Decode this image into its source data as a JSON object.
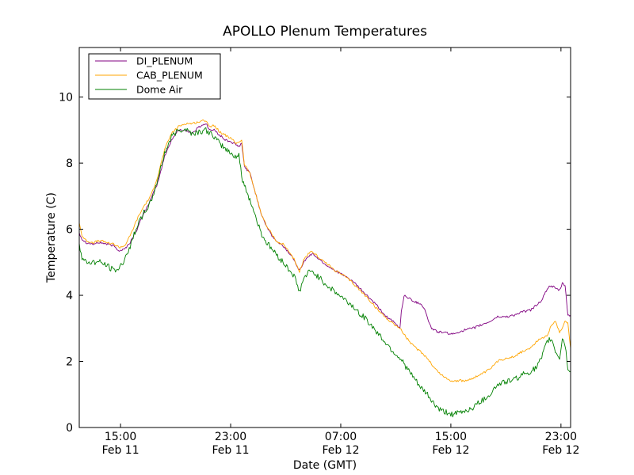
{
  "chart_data": {
    "type": "line",
    "title": "APOLLO Plenum Temperatures",
    "xlabel": "Date (GMT)",
    "ylabel": "Temperature (C)",
    "x_unit": "hours since Feb 11 12:00 GMT",
    "xlim": [
      0,
      35.7
    ],
    "ylim": [
      0,
      11.5
    ],
    "grid": false,
    "legend_position": "top-left",
    "x_ticks": [
      {
        "x": 3,
        "time": "15:00",
        "date": "Feb 11"
      },
      {
        "x": 11,
        "time": "23:00",
        "date": "Feb 11"
      },
      {
        "x": 19,
        "time": "07:00",
        "date": "Feb 12"
      },
      {
        "x": 27,
        "time": "15:00",
        "date": "Feb 12"
      },
      {
        "x": 35,
        "time": "23:00",
        "date": "Feb 12"
      }
    ],
    "y_ticks": [
      {
        "y": 0,
        "label": "0"
      },
      {
        "y": 2,
        "label": "2"
      },
      {
        "y": 4,
        "label": "4"
      },
      {
        "y": 6,
        "label": "6"
      },
      {
        "y": 8,
        "label": "8"
      },
      {
        "y": 10,
        "label": "10"
      }
    ],
    "series": [
      {
        "name": "DI_PLENUM",
        "color": "#800080",
        "x": [
          0,
          0.2,
          0.5,
          1.0,
          1.5,
          2.0,
          2.5,
          2.9,
          3.3,
          3.7,
          4.2,
          4.7,
          5.2,
          5.7,
          6.2,
          6.7,
          7.2,
          7.7,
          8.2,
          8.7,
          9.2,
          9.5,
          9.8,
          10.2,
          10.6,
          11.0,
          11.4,
          11.6,
          11.8,
          12.0,
          12.4,
          12.8,
          13.2,
          13.6,
          14.0,
          14.4,
          14.8,
          15.2,
          15.6,
          16.0,
          16.3,
          16.7,
          17.0,
          17.4,
          18.0,
          18.6,
          19.2,
          19.8,
          20.4,
          21.0,
          21.6,
          22.2,
          22.8,
          23.3,
          23.4,
          23.6,
          24.0,
          24.4,
          24.8,
          25.1,
          25.3,
          25.6,
          26.0,
          26.4,
          26.8,
          27.2,
          27.6,
          28.0,
          28.6,
          29.2,
          29.8,
          30.4,
          31.0,
          31.6,
          32.2,
          32.8,
          33.2,
          33.6,
          34.0,
          34.3,
          34.6,
          34.9,
          35.1,
          35.3,
          35.5,
          35.7
        ],
        "y": [
          5.9,
          5.7,
          5.6,
          5.55,
          5.6,
          5.55,
          5.5,
          5.35,
          5.4,
          5.6,
          6.0,
          6.5,
          6.9,
          7.4,
          8.2,
          8.7,
          9.0,
          9.0,
          8.9,
          9.1,
          9.2,
          9.0,
          9.0,
          8.85,
          8.7,
          8.65,
          8.55,
          8.5,
          8.6,
          7.9,
          7.7,
          7.1,
          6.5,
          6.1,
          5.8,
          5.6,
          5.5,
          5.3,
          5.1,
          4.75,
          5.0,
          5.2,
          5.25,
          5.1,
          4.9,
          4.75,
          4.6,
          4.45,
          4.2,
          3.95,
          3.7,
          3.4,
          3.2,
          3.0,
          3.5,
          4.0,
          3.9,
          3.8,
          3.75,
          3.6,
          3.3,
          3.0,
          2.9,
          2.88,
          2.85,
          2.82,
          2.9,
          2.95,
          3.0,
          3.1,
          3.2,
          3.35,
          3.35,
          3.4,
          3.5,
          3.55,
          3.7,
          3.85,
          4.2,
          4.3,
          4.2,
          4.15,
          4.35,
          4.3,
          3.4,
          3.4
        ]
      },
      {
        "name": "CAB_PLENUM",
        "color": "#ffa500",
        "x": [
          0,
          0.2,
          0.5,
          1.0,
          1.5,
          2.0,
          2.5,
          2.9,
          3.3,
          3.7,
          4.2,
          4.7,
          5.2,
          5.7,
          6.2,
          6.7,
          7.2,
          7.7,
          8.2,
          8.7,
          9.2,
          9.5,
          9.8,
          10.2,
          10.6,
          11.0,
          11.4,
          11.6,
          11.8,
          12.0,
          12.4,
          12.8,
          13.2,
          13.6,
          14.0,
          14.4,
          14.8,
          15.2,
          15.6,
          16.0,
          16.3,
          16.7,
          17.0,
          17.4,
          18.0,
          18.6,
          19.2,
          19.8,
          20.4,
          21.0,
          21.6,
          22.2,
          22.8,
          23.3,
          23.8,
          24.3,
          24.8,
          25.3,
          25.8,
          26.3,
          26.8,
          27.2,
          27.6,
          28.0,
          28.6,
          29.2,
          29.8,
          30.4,
          31.0,
          31.6,
          32.2,
          32.8,
          33.2,
          33.6,
          34.0,
          34.3,
          34.6,
          34.9,
          35.1,
          35.3,
          35.5,
          35.7
        ],
        "y": [
          6.2,
          5.8,
          5.65,
          5.6,
          5.65,
          5.6,
          5.55,
          5.45,
          5.5,
          5.8,
          6.3,
          6.7,
          7.0,
          7.6,
          8.4,
          8.9,
          9.1,
          9.2,
          9.2,
          9.25,
          9.3,
          9.1,
          9.15,
          8.95,
          8.85,
          8.75,
          8.6,
          8.65,
          8.7,
          7.95,
          7.7,
          7.1,
          6.5,
          6.1,
          5.85,
          5.6,
          5.55,
          5.35,
          5.1,
          4.7,
          5.05,
          5.3,
          5.3,
          5.15,
          4.95,
          4.75,
          4.6,
          4.4,
          4.15,
          3.9,
          3.6,
          3.35,
          3.15,
          3.0,
          2.7,
          2.45,
          2.3,
          2.1,
          1.8,
          1.6,
          1.45,
          1.4,
          1.42,
          1.4,
          1.5,
          1.6,
          1.75,
          2.0,
          2.1,
          2.15,
          2.3,
          2.4,
          2.6,
          2.7,
          2.8,
          3.1,
          3.2,
          2.9,
          3.0,
          3.25,
          3.15,
          2.4
        ]
      },
      {
        "name": "Dome Air",
        "color": "#008000",
        "x": [
          0,
          0.2,
          0.5,
          1.0,
          1.5,
          2.0,
          2.5,
          2.9,
          3.3,
          3.7,
          4.2,
          4.7,
          5.2,
          5.7,
          6.2,
          6.7,
          7.2,
          7.7,
          8.2,
          8.7,
          9.2,
          9.5,
          9.8,
          10.2,
          10.6,
          11.0,
          11.4,
          11.6,
          11.8,
          12.0,
          12.4,
          12.8,
          13.2,
          13.6,
          14.0,
          14.4,
          14.8,
          15.2,
          15.6,
          16.0,
          16.3,
          16.7,
          17.0,
          17.4,
          18.0,
          18.6,
          19.2,
          19.8,
          20.4,
          21.0,
          21.6,
          22.2,
          22.8,
          23.3,
          23.8,
          24.3,
          24.8,
          25.3,
          25.8,
          26.3,
          26.8,
          27.2,
          27.6,
          28.0,
          28.6,
          29.2,
          29.8,
          30.4,
          31.0,
          31.6,
          32.2,
          32.8,
          33.2,
          33.6,
          34.0,
          34.3,
          34.6,
          34.9,
          35.1,
          35.3,
          35.5,
          35.7
        ],
        "y": [
          5.6,
          5.1,
          5.0,
          5.0,
          5.0,
          4.9,
          4.75,
          4.8,
          5.1,
          5.5,
          6.1,
          6.5,
          6.8,
          7.5,
          8.3,
          8.8,
          9.0,
          9.05,
          8.9,
          8.95,
          9.0,
          8.9,
          8.8,
          8.6,
          8.45,
          8.3,
          8.2,
          8.25,
          7.6,
          7.3,
          6.9,
          6.4,
          5.9,
          5.6,
          5.4,
          5.2,
          5.0,
          4.8,
          4.6,
          4.1,
          4.5,
          4.7,
          4.7,
          4.55,
          4.3,
          4.1,
          3.9,
          3.7,
          3.45,
          3.2,
          2.9,
          2.6,
          2.3,
          2.1,
          1.8,
          1.5,
          1.2,
          1.0,
          0.7,
          0.5,
          0.45,
          0.4,
          0.45,
          0.5,
          0.6,
          0.8,
          1.0,
          1.3,
          1.4,
          1.45,
          1.6,
          1.7,
          1.8,
          2.1,
          2.6,
          2.7,
          2.3,
          2.1,
          2.7,
          2.5,
          1.8,
          1.7
        ]
      }
    ]
  }
}
